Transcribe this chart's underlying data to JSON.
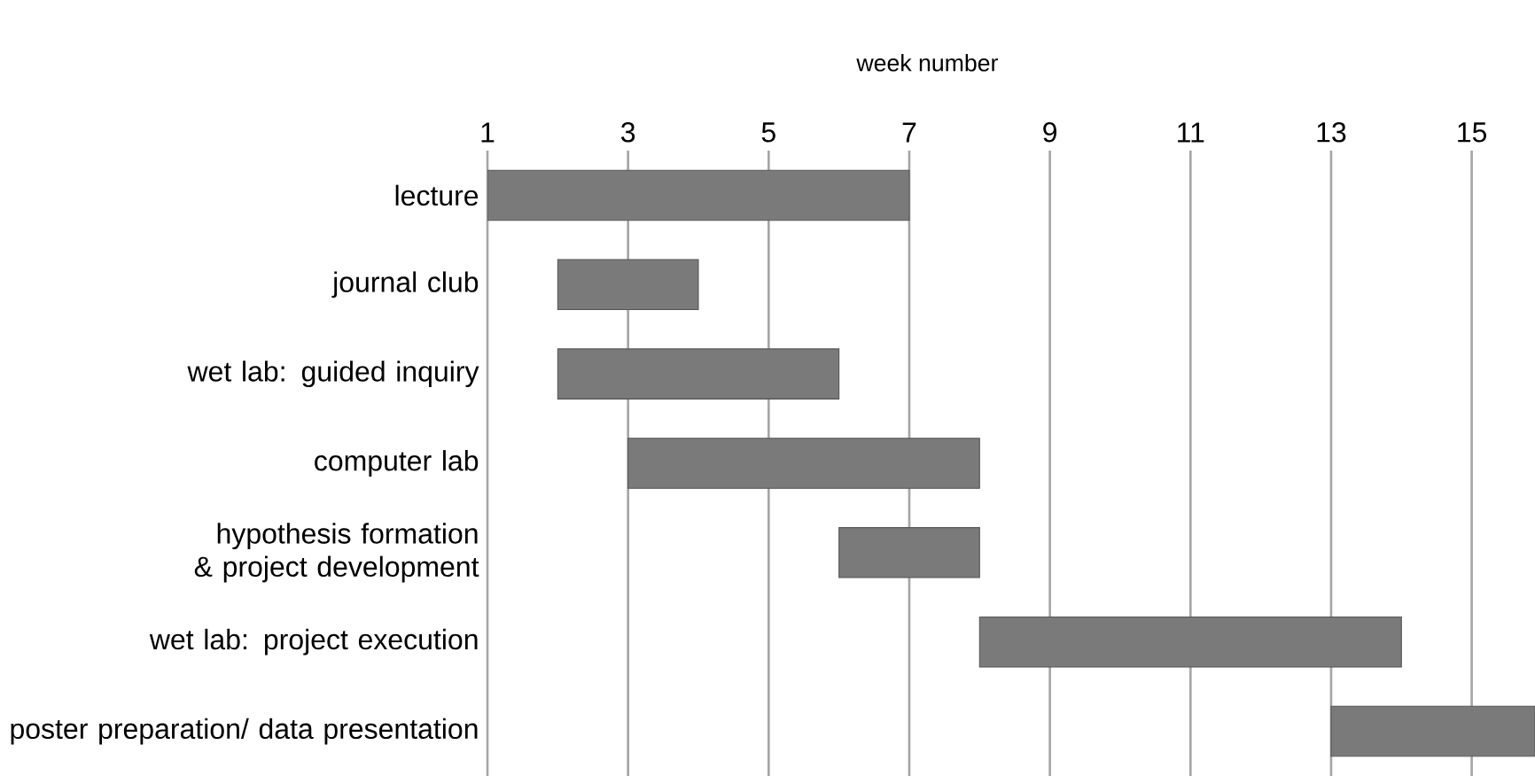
{
  "chart_data": {
    "type": "bar",
    "orientation": "horizontal",
    "xlabel": "week number",
    "categories": [
      "lecture",
      "journal club",
      "wet lab: guided inquiry",
      "computer lab",
      "hypothesis formation & project development",
      "wet lab: project execution",
      "poster preparation/ data presentation"
    ],
    "base": [
      1,
      2,
      2,
      3,
      6,
      8,
      13
    ],
    "values": [
      6,
      2,
      4,
      5,
      2,
      6,
      2.9
    ],
    "color": "#7a7a7a",
    "xlim": [
      1,
      15.9
    ],
    "xticks": [
      1,
      3,
      5,
      7,
      9,
      11,
      13,
      15
    ],
    "grid": "x"
  }
}
